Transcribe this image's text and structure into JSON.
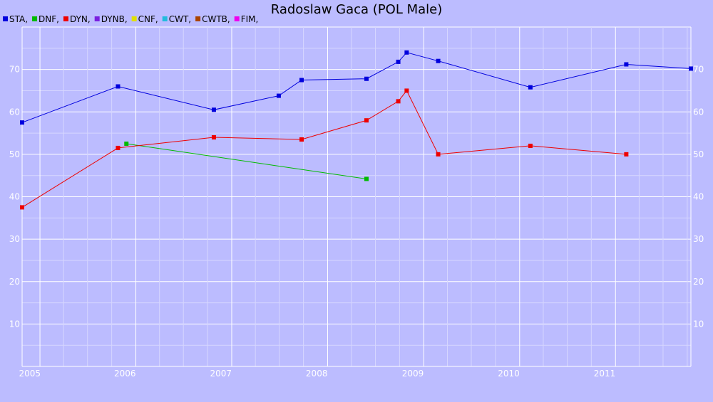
{
  "chart_data": {
    "type": "line",
    "title": "Radoslaw Gaca (POL Male)",
    "xlabel": "",
    "ylabel": "",
    "x_axis": "date",
    "xlim": [
      "2004-10-25",
      "2011-10-15"
    ],
    "ylim": [
      0,
      80
    ],
    "x_tick_labels": [
      "2005",
      "2006",
      "2007",
      "2008",
      "2009",
      "2010",
      "2011"
    ],
    "y_tick_labels": [
      10,
      20,
      30,
      40,
      50,
      60,
      70
    ],
    "grid": true,
    "legend_position": "top-left",
    "legend": [
      {
        "name": "STA",
        "color": "#0000dd"
      },
      {
        "name": "DNF",
        "color": "#00bb00"
      },
      {
        "name": "DYN",
        "color": "#ee0000"
      },
      {
        "name": "DYNB",
        "color": "#7a1fe0"
      },
      {
        "name": "CNF",
        "color": "#e0e000"
      },
      {
        "name": "CWT",
        "color": "#22bbdd"
      },
      {
        "name": "CWTB",
        "color": "#aa4400"
      },
      {
        "name": "FIM",
        "color": "#ee00ee"
      }
    ],
    "series": [
      {
        "name": "STA",
        "color": "#0000dd",
        "points": [
          {
            "x": "2004-10-25",
            "y": 57.5
          },
          {
            "x": "2005-10-25",
            "y": 66
          },
          {
            "x": "2006-10-25",
            "y": 60.5
          },
          {
            "x": "2007-06-29",
            "y": 63.8
          },
          {
            "x": "2007-09-24",
            "y": 67.5
          },
          {
            "x": "2008-05-28",
            "y": 67.8
          },
          {
            "x": "2008-09-26",
            "y": 71.8
          },
          {
            "x": "2008-10-28",
            "y": 74
          },
          {
            "x": "2009-02-25",
            "y": 72
          },
          {
            "x": "2010-02-11",
            "y": 65.8
          },
          {
            "x": "2011-02-11",
            "y": 71.2
          },
          {
            "x": "2011-10-15",
            "y": 70.2
          }
        ]
      },
      {
        "name": "DNF",
        "color": "#00bb00",
        "points": [
          {
            "x": "2005-11-26",
            "y": 52.5
          },
          {
            "x": "2008-05-28",
            "y": 44.2
          }
        ]
      },
      {
        "name": "DYN",
        "color": "#ee0000",
        "points": [
          {
            "x": "2004-10-25",
            "y": 37.5
          },
          {
            "x": "2005-10-25",
            "y": 51.5
          },
          {
            "x": "2006-10-25",
            "y": 54
          },
          {
            "x": "2007-09-24",
            "y": 53.5
          },
          {
            "x": "2008-05-28",
            "y": 58
          },
          {
            "x": "2008-09-26",
            "y": 62.5
          },
          {
            "x": "2008-10-28",
            "y": 65
          },
          {
            "x": "2009-02-25",
            "y": 50
          },
          {
            "x": "2010-02-11",
            "y": 52
          },
          {
            "x": "2011-02-11",
            "y": 50
          }
        ]
      }
    ]
  }
}
